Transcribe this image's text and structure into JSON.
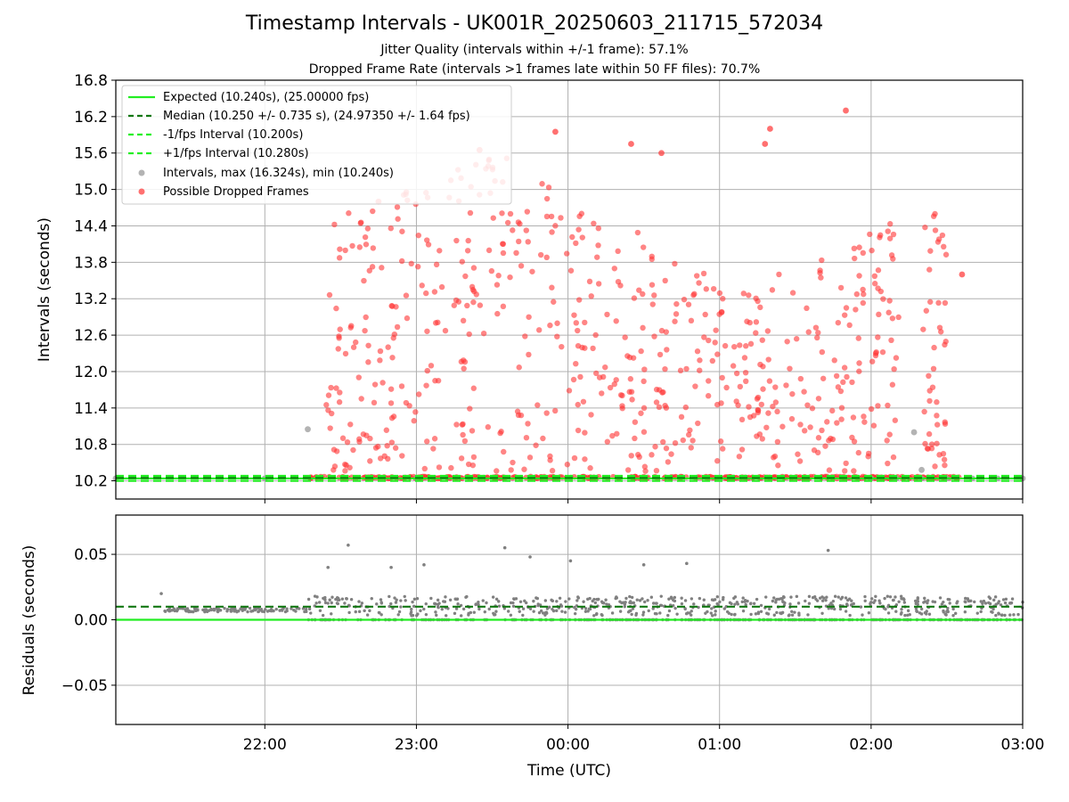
{
  "chart_data": [
    {
      "type": "scatter",
      "title": "Timestamp Intervals - UK001R_20250603_211715_572034",
      "subtitles": [
        "Jitter Quality (intervals within +/-1 frame): 57.1%",
        "Dropped Frame Rate (intervals >1 frames late within 50 FF files): 70.7%"
      ],
      "xlabel": "",
      "ylabel": "Intervals (seconds)",
      "xlim": [
        "21:01",
        "03:00"
      ],
      "ylim": [
        9.9,
        16.8
      ],
      "yticks": [
        "10.2",
        "10.8",
        "11.4",
        "12.0",
        "12.6",
        "13.2",
        "13.8",
        "14.4",
        "15.0",
        "15.6",
        "16.2",
        "16.8"
      ],
      "xticks": [
        "22:00",
        "23:00",
        "00:00",
        "01:00",
        "02:00",
        "03:00"
      ],
      "grid": true,
      "legend_position": "upper left",
      "reference_lines": [
        {
          "label": "Expected (10.240s), (25.00000 fps)",
          "y": 10.24,
          "style": "solid",
          "color": "#22ee22"
        },
        {
          "label": "Median (10.250 +/- 0.735 s), (24.97350 +/- 1.64 fps)",
          "y": 10.25,
          "style": "dashed",
          "color": "#117711"
        },
        {
          "label": "-1/fps Interval (10.200s)",
          "y": 10.2,
          "style": "dashed",
          "color": "#22ee22"
        },
        {
          "label": "+1/fps Interval (10.280s)",
          "y": 10.28,
          "style": "dashed",
          "color": "#22ee22"
        }
      ],
      "series": [
        {
          "name": "Intervals, max (16.324s), min (10.240s)",
          "color": "#a0a0a0",
          "points": [
            {
              "x": "21:01",
              "y": 10.24
            },
            {
              "x": "22:00",
              "y": 10.24
            },
            {
              "x": "23:00",
              "y": 10.24
            },
            {
              "x": "00:00",
              "y": 10.24
            },
            {
              "x": "01:00",
              "y": 10.24
            },
            {
              "x": "02:00",
              "y": 10.24
            },
            {
              "x": "02:10",
              "y": 10.24
            },
            {
              "x": "02:20",
              "y": 10.24
            },
            {
              "x": "02:30",
              "y": 10.24
            },
            {
              "x": "02:40",
              "y": 10.24
            },
            {
              "x": "02:50",
              "y": 10.24
            },
            {
              "x": "03:00",
              "y": 10.24
            },
            {
              "x": "22:17",
              "y": 11.05
            },
            {
              "x": "02:17",
              "y": 11.0
            },
            {
              "x": "02:20",
              "y": 10.38
            }
          ]
        },
        {
          "name": "Possible Dropped Frames",
          "color": "#ff3333",
          "x_range": [
            "22:17",
            "02:35"
          ],
          "y_range": [
            10.24,
            16.32
          ],
          "description_values": [
            {
              "x": "22:45",
              "y": 14.8
            },
            {
              "x": "23:25",
              "y": 15.65
            },
            {
              "x": "23:55",
              "y": 15.95
            },
            {
              "x": "00:25",
              "y": 15.75
            },
            {
              "x": "00:37",
              "y": 15.6
            },
            {
              "x": "01:18",
              "y": 15.75
            },
            {
              "x": "01:20",
              "y": 16.0
            },
            {
              "x": "01:50",
              "y": 16.3
            },
            {
              "x": "02:36",
              "y": 13.6
            }
          ]
        }
      ]
    },
    {
      "type": "scatter",
      "xlabel": "Time (UTC)",
      "ylabel": "Residuals (seconds)",
      "xlim": [
        "21:01",
        "03:00"
      ],
      "ylim": [
        -0.08,
        0.08
      ],
      "yticks": [
        "−0.05",
        "0.00",
        "0.05"
      ],
      "xticks": [
        "22:00",
        "23:00",
        "00:00",
        "01:00",
        "02:00",
        "03:00"
      ],
      "grid": true,
      "reference_lines": [
        {
          "y": 0.0,
          "style": "solid",
          "color": "#22ee22"
        },
        {
          "y": 0.01,
          "style": "dashed",
          "color": "#117711"
        }
      ],
      "series": [
        {
          "color": "#808080",
          "x_range": [
            "21:19",
            "03:00"
          ],
          "y_range": [
            0.0,
            0.057
          ],
          "outliers": [
            {
              "x": "22:33",
              "y": 0.057
            },
            {
              "x": "23:35",
              "y": 0.055
            },
            {
              "x": "23:45",
              "y": 0.048
            },
            {
              "x": "22:25",
              "y": 0.04
            },
            {
              "x": "22:50",
              "y": 0.04
            },
            {
              "x": "23:03",
              "y": 0.042
            },
            {
              "x": "00:01",
              "y": 0.045
            },
            {
              "x": "00:30",
              "y": 0.042
            },
            {
              "x": "00:47",
              "y": 0.043
            },
            {
              "x": "01:43",
              "y": 0.053
            },
            {
              "x": "21:19",
              "y": 0.02
            }
          ]
        }
      ]
    }
  ]
}
